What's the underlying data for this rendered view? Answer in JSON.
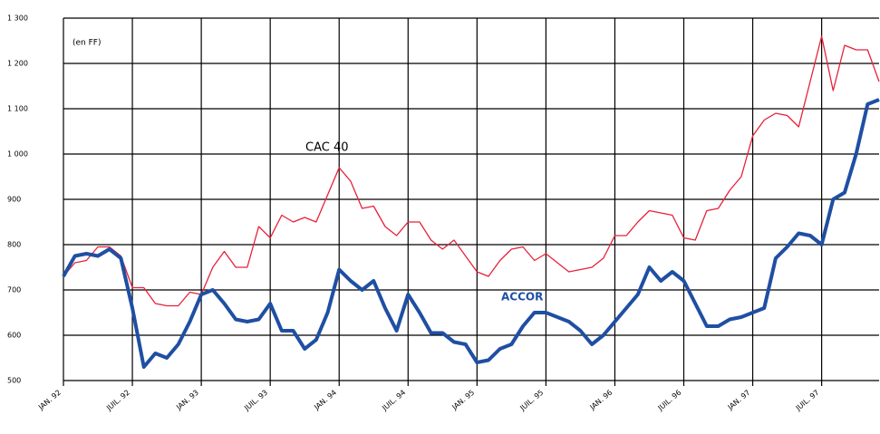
{
  "chart_data": {
    "type": "line",
    "annotations": [
      "(en FF)"
    ],
    "x": [
      0,
      1,
      2,
      3,
      4,
      5,
      6,
      7,
      8,
      9,
      10,
      11,
      12,
      13,
      14,
      15,
      16,
      17,
      18,
      19,
      20,
      21,
      22,
      23,
      24,
      25,
      26,
      27,
      28,
      29,
      30,
      31,
      32,
      33,
      34,
      35,
      36,
      37,
      38,
      39,
      40,
      41,
      42,
      43,
      44,
      45,
      46,
      47,
      48,
      49,
      50,
      51,
      52,
      53,
      54,
      55,
      56,
      57,
      58,
      59,
      60,
      61,
      62,
      63,
      64,
      65,
      66,
      67,
      68,
      69,
      70,
      71
    ],
    "series": [
      {
        "name": "CAC 40",
        "color": "#e8203a",
        "width": 1.3,
        "values": [
          730,
          760,
          765,
          795,
          795,
          775,
          705,
          705,
          670,
          665,
          665,
          695,
          690,
          750,
          785,
          750,
          750,
          840,
          815,
          865,
          850,
          860,
          850,
          910,
          970,
          940,
          880,
          885,
          840,
          820,
          850,
          850,
          810,
          790,
          810,
          775,
          740,
          730,
          765,
          790,
          795,
          765,
          780,
          760,
          740,
          745,
          750,
          770,
          820,
          820,
          850,
          875,
          870,
          865,
          815,
          810,
          875,
          880,
          920,
          950,
          1040,
          1075,
          1090,
          1085,
          1060,
          1160,
          1260,
          1140,
          1240,
          1230,
          1230,
          1160
        ]
      },
      {
        "name": "ACCOR",
        "color": "#1f4fa3",
        "width": 4,
        "values": [
          730,
          775,
          780,
          775,
          790,
          770,
          660,
          530,
          560,
          550,
          580,
          630,
          690,
          700,
          670,
          635,
          630,
          635,
          670,
          610,
          610,
          570,
          590,
          650,
          745,
          720,
          700,
          720,
          660,
          610,
          690,
          650,
          605,
          605,
          585,
          580,
          540,
          545,
          570,
          580,
          620,
          650,
          650,
          640,
          630,
          610,
          580,
          600,
          630,
          660,
          690,
          750,
          720,
          740,
          720,
          670,
          620,
          620,
          635,
          640,
          650,
          660,
          770,
          795,
          825,
          820,
          800,
          900,
          915,
          1000,
          1110,
          1120
        ]
      }
    ],
    "xlim": [
      0,
      71
    ],
    "xticks": [
      {
        "value": 0,
        "label": "JAN. 92"
      },
      {
        "value": 6,
        "label": "JUIL. 92"
      },
      {
        "value": 12,
        "label": "JAN. 93"
      },
      {
        "value": 18,
        "label": "JUIL. 93"
      },
      {
        "value": 24,
        "label": "JAN. 94"
      },
      {
        "value": 30,
        "label": "JUIL. 94"
      },
      {
        "value": 36,
        "label": "JAN. 95"
      },
      {
        "value": 42,
        "label": "JUIL. 95"
      },
      {
        "value": 48,
        "label": "JAN. 96"
      },
      {
        "value": 54,
        "label": "JUIL. 96"
      },
      {
        "value": 60,
        "label": "JAN. 97"
      },
      {
        "value": 66,
        "label": "JUIL. 97"
      }
    ],
    "ylim": [
      500,
      1300
    ],
    "yticks": [
      500,
      600,
      700,
      800,
      900,
      {
        "value": 1000,
        "label": "1 000"
      },
      {
        "value": 1100,
        "label": "1 100"
      },
      {
        "value": 1200,
        "label": "1 200"
      },
      {
        "value": 1300,
        "label": "1 300"
      }
    ],
    "grid": true
  }
}
